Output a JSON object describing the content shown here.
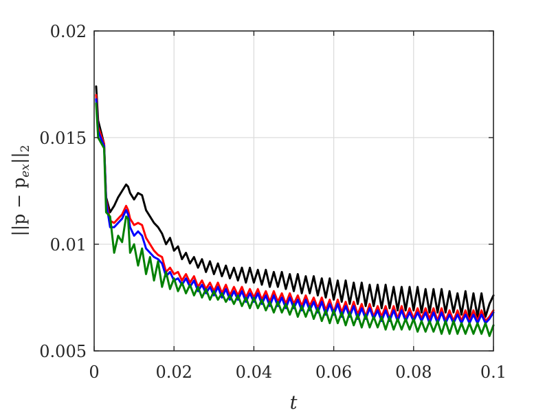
{
  "chart_data": {
    "type": "line",
    "title": "",
    "xlabel": "t",
    "ylabel": "||p − p_ex||_2",
    "ylabel_parts": {
      "prefix": "||p − p",
      "sub": "ex",
      "suffix": "||",
      "sub2": "2"
    },
    "xlim": [
      0,
      0.1
    ],
    "ylim": [
      0.005,
      0.02
    ],
    "grid": true,
    "legend": "none",
    "x_ticks": [
      0,
      0.02,
      0.04,
      0.06,
      0.08,
      0.1
    ],
    "x_tick_labels": [
      "0",
      "0.02",
      "0.04",
      "0.06",
      "0.08",
      "0.1"
    ],
    "y_ticks": [
      0.005,
      0.01,
      0.015,
      0.02
    ],
    "y_tick_labels": [
      "0.005",
      "0.01",
      "0.015",
      "0.02"
    ],
    "series": [
      {
        "color": "#000000",
        "x": [
          0.0005,
          0.001,
          0.0025,
          0.003,
          0.004,
          0.005,
          0.006,
          0.007,
          0.008,
          0.0085,
          0.009,
          0.01,
          0.011,
          0.012,
          0.013,
          0.014,
          0.015,
          0.016,
          0.017,
          0.018,
          0.019,
          0.02,
          0.021,
          0.022,
          0.023,
          0.024,
          0.025,
          0.026,
          0.027,
          0.028,
          0.029,
          0.03,
          0.031,
          0.032,
          0.033,
          0.034,
          0.035,
          0.036,
          0.037,
          0.038,
          0.039,
          0.04,
          0.041,
          0.042,
          0.043,
          0.044,
          0.045,
          0.046,
          0.047,
          0.048,
          0.049,
          0.05,
          0.051,
          0.052,
          0.053,
          0.054,
          0.055,
          0.056,
          0.057,
          0.058,
          0.059,
          0.06,
          0.061,
          0.062,
          0.063,
          0.064,
          0.065,
          0.066,
          0.067,
          0.068,
          0.069,
          0.07,
          0.071,
          0.072,
          0.073,
          0.074,
          0.075,
          0.076,
          0.077,
          0.078,
          0.079,
          0.08,
          0.081,
          0.082,
          0.083,
          0.084,
          0.085,
          0.086,
          0.087,
          0.088,
          0.089,
          0.09,
          0.091,
          0.092,
          0.093,
          0.094,
          0.095,
          0.096,
          0.097,
          0.098,
          0.099,
          0.1
        ],
        "values": [
          0.0174,
          0.0158,
          0.0147,
          0.0122,
          0.0115,
          0.0118,
          0.0122,
          0.0125,
          0.0128,
          0.0127,
          0.0124,
          0.0121,
          0.0124,
          0.0123,
          0.0116,
          0.0113,
          0.011,
          0.0108,
          0.0105,
          0.01,
          0.0103,
          0.0097,
          0.0099,
          0.0093,
          0.0096,
          0.0091,
          0.0094,
          0.0089,
          0.0093,
          0.0087,
          0.0092,
          0.0086,
          0.0091,
          0.0085,
          0.009,
          0.0084,
          0.0089,
          0.0083,
          0.0089,
          0.0082,
          0.0089,
          0.0082,
          0.0088,
          0.0081,
          0.0088,
          0.008,
          0.0087,
          0.008,
          0.0087,
          0.0079,
          0.0086,
          0.0078,
          0.0086,
          0.0077,
          0.0085,
          0.0077,
          0.0085,
          0.0076,
          0.0084,
          0.0075,
          0.0084,
          0.0074,
          0.0083,
          0.0073,
          0.0083,
          0.0072,
          0.0082,
          0.0072,
          0.0082,
          0.0071,
          0.0081,
          0.0071,
          0.0081,
          0.007,
          0.0081,
          0.007,
          0.008,
          0.0069,
          0.008,
          0.0069,
          0.008,
          0.0069,
          0.008,
          0.0068,
          0.0079,
          0.0068,
          0.0079,
          0.0068,
          0.0079,
          0.0068,
          0.0078,
          0.0068,
          0.0077,
          0.0067,
          0.0078,
          0.0066,
          0.0077,
          0.0066,
          0.0077,
          0.0066,
          0.0072,
          0.0076
        ]
      },
      {
        "color": "#ff0000",
        "x": [
          0.0005,
          0.001,
          0.0025,
          0.003,
          0.004,
          0.005,
          0.006,
          0.007,
          0.008,
          0.0085,
          0.009,
          0.01,
          0.011,
          0.012,
          0.013,
          0.014,
          0.015,
          0.016,
          0.017,
          0.018,
          0.019,
          0.02,
          0.021,
          0.022,
          0.023,
          0.024,
          0.025,
          0.026,
          0.027,
          0.028,
          0.029,
          0.03,
          0.031,
          0.032,
          0.033,
          0.034,
          0.035,
          0.036,
          0.037,
          0.038,
          0.039,
          0.04,
          0.041,
          0.042,
          0.043,
          0.044,
          0.045,
          0.046,
          0.047,
          0.048,
          0.049,
          0.05,
          0.051,
          0.052,
          0.053,
          0.054,
          0.055,
          0.056,
          0.057,
          0.058,
          0.059,
          0.06,
          0.061,
          0.062,
          0.063,
          0.064,
          0.065,
          0.066,
          0.067,
          0.068,
          0.069,
          0.07,
          0.071,
          0.072,
          0.073,
          0.074,
          0.075,
          0.076,
          0.077,
          0.078,
          0.079,
          0.08,
          0.081,
          0.082,
          0.083,
          0.084,
          0.085,
          0.086,
          0.087,
          0.088,
          0.089,
          0.09,
          0.091,
          0.092,
          0.093,
          0.094,
          0.095,
          0.096,
          0.097,
          0.098,
          0.099,
          0.1
        ],
        "values": [
          0.017,
          0.0155,
          0.0147,
          0.0121,
          0.0111,
          0.011,
          0.0112,
          0.0114,
          0.0118,
          0.0116,
          0.0112,
          0.0109,
          0.011,
          0.0109,
          0.0103,
          0.01,
          0.0097,
          0.0095,
          0.0094,
          0.0087,
          0.0089,
          0.0086,
          0.0087,
          0.0083,
          0.0086,
          0.0082,
          0.0085,
          0.008,
          0.0083,
          0.0079,
          0.0082,
          0.0078,
          0.0082,
          0.0077,
          0.0081,
          0.0076,
          0.008,
          0.0076,
          0.008,
          0.0075,
          0.0079,
          0.0075,
          0.0079,
          0.0074,
          0.0078,
          0.0073,
          0.0078,
          0.0073,
          0.0077,
          0.0072,
          0.0077,
          0.0072,
          0.0076,
          0.0071,
          0.0076,
          0.0071,
          0.0075,
          0.007,
          0.0075,
          0.0069,
          0.0074,
          0.0068,
          0.0074,
          0.0068,
          0.0073,
          0.0067,
          0.0073,
          0.0067,
          0.0072,
          0.0066,
          0.0072,
          0.0066,
          0.0071,
          0.0066,
          0.0071,
          0.0065,
          0.0071,
          0.0065,
          0.0071,
          0.0065,
          0.007,
          0.0065,
          0.007,
          0.0065,
          0.007,
          0.0065,
          0.007,
          0.0064,
          0.007,
          0.0064,
          0.0069,
          0.0064,
          0.0069,
          0.0064,
          0.0069,
          0.0064,
          0.0069,
          0.0064,
          0.0069,
          0.0064,
          0.0066,
          0.0069
        ]
      },
      {
        "color": "#0000ff",
        "x": [
          0.0005,
          0.001,
          0.0025,
          0.003,
          0.004,
          0.005,
          0.006,
          0.007,
          0.008,
          0.0085,
          0.009,
          0.01,
          0.011,
          0.012,
          0.013,
          0.014,
          0.015,
          0.016,
          0.017,
          0.018,
          0.019,
          0.02,
          0.021,
          0.022,
          0.023,
          0.024,
          0.025,
          0.026,
          0.027,
          0.028,
          0.029,
          0.03,
          0.031,
          0.032,
          0.033,
          0.034,
          0.035,
          0.036,
          0.037,
          0.038,
          0.039,
          0.04,
          0.041,
          0.042,
          0.043,
          0.044,
          0.045,
          0.046,
          0.047,
          0.048,
          0.049,
          0.05,
          0.051,
          0.052,
          0.053,
          0.054,
          0.055,
          0.056,
          0.057,
          0.058,
          0.059,
          0.06,
          0.061,
          0.062,
          0.063,
          0.064,
          0.065,
          0.066,
          0.067,
          0.068,
          0.069,
          0.07,
          0.071,
          0.072,
          0.073,
          0.074,
          0.075,
          0.076,
          0.077,
          0.078,
          0.079,
          0.08,
          0.081,
          0.082,
          0.083,
          0.084,
          0.085,
          0.086,
          0.087,
          0.088,
          0.089,
          0.09,
          0.091,
          0.092,
          0.093,
          0.094,
          0.095,
          0.096,
          0.097,
          0.098,
          0.099,
          0.1
        ],
        "values": [
          0.0168,
          0.0153,
          0.0146,
          0.012,
          0.0108,
          0.0108,
          0.011,
          0.0112,
          0.0116,
          0.0114,
          0.0108,
          0.0104,
          0.0106,
          0.0104,
          0.0098,
          0.0096,
          0.0094,
          0.0093,
          0.0091,
          0.0085,
          0.0087,
          0.0083,
          0.0084,
          0.0081,
          0.0084,
          0.008,
          0.0083,
          0.0078,
          0.0081,
          0.0077,
          0.008,
          0.0076,
          0.008,
          0.0075,
          0.0079,
          0.0074,
          0.0078,
          0.0074,
          0.0078,
          0.0073,
          0.0077,
          0.0073,
          0.0077,
          0.0072,
          0.0076,
          0.0071,
          0.0076,
          0.0071,
          0.0075,
          0.007,
          0.0075,
          0.007,
          0.0074,
          0.0069,
          0.0074,
          0.0069,
          0.0073,
          0.0068,
          0.0073,
          0.0067,
          0.0072,
          0.0067,
          0.0072,
          0.0066,
          0.0071,
          0.0066,
          0.0071,
          0.0065,
          0.007,
          0.0065,
          0.007,
          0.0065,
          0.0069,
          0.0064,
          0.0069,
          0.0064,
          0.0069,
          0.0064,
          0.0069,
          0.0064,
          0.0068,
          0.0064,
          0.0068,
          0.0064,
          0.0068,
          0.0063,
          0.0068,
          0.0063,
          0.0068,
          0.0063,
          0.0067,
          0.0063,
          0.0067,
          0.0063,
          0.0067,
          0.0063,
          0.0067,
          0.0063,
          0.0067,
          0.0063,
          0.0065,
          0.0068
        ]
      },
      {
        "color": "#008000",
        "x": [
          0.0005,
          0.001,
          0.0025,
          0.003,
          0.004,
          0.005,
          0.006,
          0.007,
          0.008,
          0.0085,
          0.009,
          0.01,
          0.011,
          0.012,
          0.013,
          0.014,
          0.015,
          0.016,
          0.017,
          0.018,
          0.019,
          0.02,
          0.021,
          0.022,
          0.023,
          0.024,
          0.025,
          0.026,
          0.027,
          0.028,
          0.029,
          0.03,
          0.031,
          0.032,
          0.033,
          0.034,
          0.035,
          0.036,
          0.037,
          0.038,
          0.039,
          0.04,
          0.041,
          0.042,
          0.043,
          0.044,
          0.045,
          0.046,
          0.047,
          0.048,
          0.049,
          0.05,
          0.051,
          0.052,
          0.053,
          0.054,
          0.055,
          0.056,
          0.057,
          0.058,
          0.059,
          0.06,
          0.061,
          0.062,
          0.063,
          0.064,
          0.065,
          0.066,
          0.067,
          0.068,
          0.069,
          0.07,
          0.071,
          0.072,
          0.073,
          0.074,
          0.075,
          0.076,
          0.077,
          0.078,
          0.079,
          0.08,
          0.081,
          0.082,
          0.083,
          0.084,
          0.085,
          0.086,
          0.087,
          0.088,
          0.089,
          0.09,
          0.091,
          0.092,
          0.093,
          0.094,
          0.095,
          0.096,
          0.097,
          0.098,
          0.099,
          0.1
        ],
        "values": [
          0.0166,
          0.015,
          0.0145,
          0.0115,
          0.0113,
          0.0096,
          0.0104,
          0.0101,
          0.0113,
          0.0112,
          0.0096,
          0.01,
          0.009,
          0.0098,
          0.0086,
          0.0094,
          0.0083,
          0.0092,
          0.008,
          0.0087,
          0.0079,
          0.0084,
          0.0078,
          0.0082,
          0.0077,
          0.0081,
          0.0076,
          0.008,
          0.0075,
          0.0079,
          0.0074,
          0.0078,
          0.0074,
          0.0077,
          0.0073,
          0.0076,
          0.0072,
          0.0076,
          0.0071,
          0.0075,
          0.007,
          0.0075,
          0.007,
          0.0074,
          0.0069,
          0.0073,
          0.0068,
          0.0073,
          0.0068,
          0.0072,
          0.0067,
          0.0072,
          0.0066,
          0.0071,
          0.0066,
          0.0071,
          0.0065,
          0.007,
          0.0064,
          0.0069,
          0.0063,
          0.0069,
          0.0063,
          0.0068,
          0.0062,
          0.0068,
          0.0062,
          0.0067,
          0.0061,
          0.0067,
          0.0061,
          0.0066,
          0.0061,
          0.0066,
          0.006,
          0.0066,
          0.006,
          0.0065,
          0.006,
          0.0065,
          0.006,
          0.0065,
          0.0059,
          0.0064,
          0.0059,
          0.0064,
          0.0059,
          0.0064,
          0.0058,
          0.0064,
          0.0058,
          0.0064,
          0.0058,
          0.0063,
          0.0058,
          0.0063,
          0.0058,
          0.0063,
          0.0058,
          0.0063,
          0.0057,
          0.0062
        ]
      }
    ]
  }
}
